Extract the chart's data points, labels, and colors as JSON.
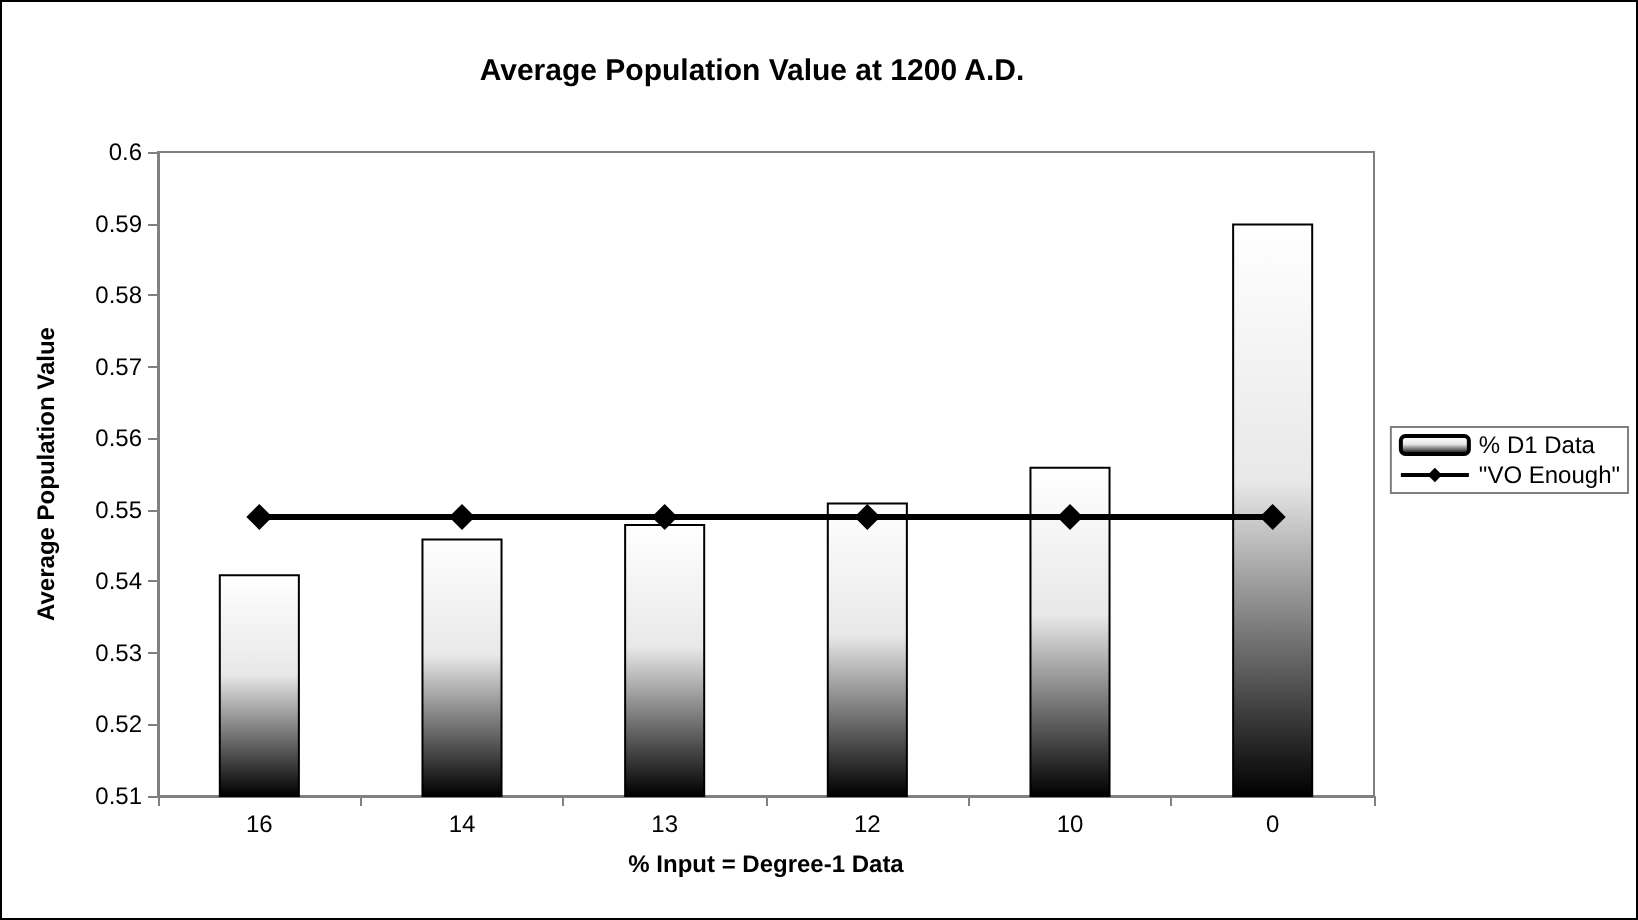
{
  "chart_data": {
    "type": "bar",
    "title": "Average Population Value at 1200 A.D.",
    "xlabel": "% Input = Degree-1 Data",
    "ylabel": "Average Population Value",
    "categories": [
      "16",
      "14",
      "13",
      "12",
      "10",
      "0"
    ],
    "series": [
      {
        "name": "% D1 Data",
        "color": "#000000",
        "values": [
          0.541,
          0.546,
          0.548,
          0.551,
          0.556,
          0.59
        ]
      },
      {
        "name": "\"VO Enough\"",
        "type": "line",
        "color": "#000000",
        "values": [
          0.549,
          0.549,
          0.549,
          0.549,
          0.549,
          0.549
        ]
      }
    ],
    "ylim": [
      0.51,
      0.6
    ],
    "yticks": [
      0.51,
      0.52,
      0.53,
      0.54,
      0.55,
      0.56,
      0.57,
      0.58,
      0.59,
      0.6
    ],
    "grid": false,
    "legend": "right",
    "marker": "diamond",
    "line_style": "solid"
  }
}
